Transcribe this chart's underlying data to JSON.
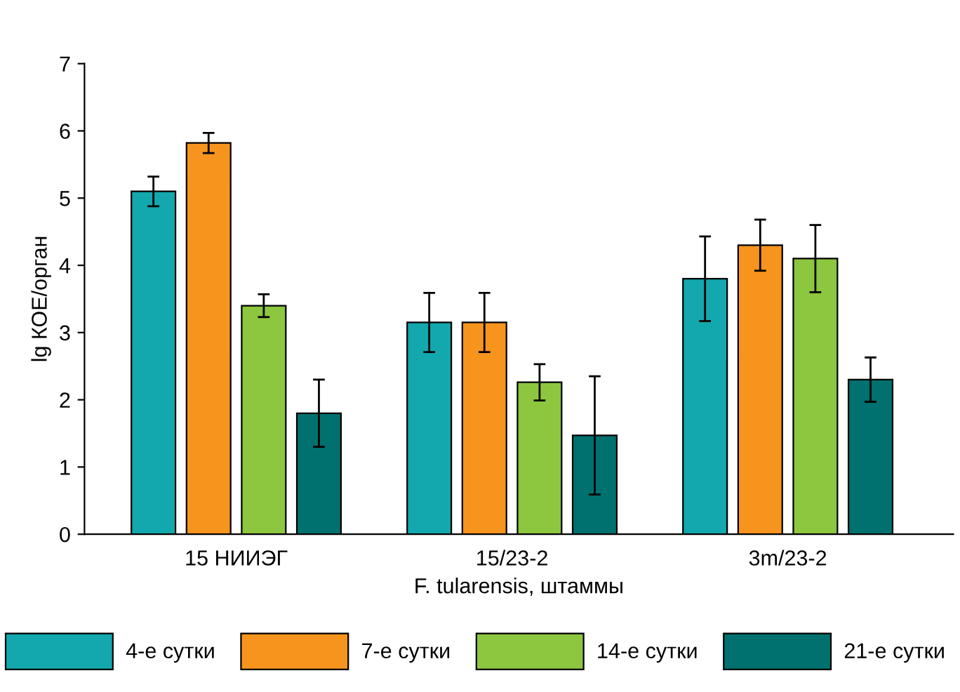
{
  "chart_data": {
    "type": "bar",
    "xlabel": "F. tularensis, штаммы",
    "ylabel": "lg КОЕ/орган",
    "categories": [
      "15 НИИЭГ",
      "15/23-2",
      "3m/23-2"
    ],
    "series": [
      {
        "name": "4-е сутки",
        "color": "#12a8ad",
        "values": [
          5.1,
          3.15,
          3.8
        ],
        "errors": [
          0.22,
          0.44,
          0.63
        ]
      },
      {
        "name": "7-е сутки",
        "color": "#f7941d",
        "values": [
          5.82,
          3.15,
          4.3
        ],
        "errors": [
          0.15,
          0.44,
          0.38
        ]
      },
      {
        "name": "14-е сутки",
        "color": "#8dc63f",
        "values": [
          3.4,
          2.26,
          4.1
        ],
        "errors": [
          0.17,
          0.27,
          0.5
        ]
      },
      {
        "name": "21-е сутки",
        "color": "#00716f",
        "values": [
          1.8,
          1.47,
          2.3
        ],
        "errors": [
          0.5,
          0.88,
          0.33
        ]
      }
    ],
    "ylim": [
      0,
      7
    ],
    "yticks": [
      0,
      1,
      2,
      3,
      4,
      5,
      6,
      7
    ],
    "grid": false,
    "legend": "bottom"
  }
}
